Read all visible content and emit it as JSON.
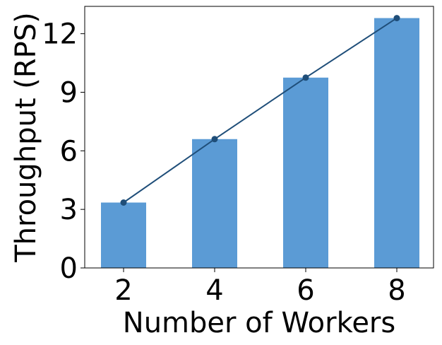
{
  "chart_data": {
    "type": "bar",
    "categories": [
      "2",
      "4",
      "6",
      "8"
    ],
    "values": [
      3.35,
      6.6,
      9.75,
      12.8
    ],
    "line": {
      "values": [
        3.35,
        6.6,
        9.75,
        12.8
      ],
      "color": "#1f4e79",
      "marker": "circle"
    },
    "bar_color": "#5b9bd5",
    "title": "",
    "xlabel": "Number of Workers",
    "ylabel": "Throughput (RPS)",
    "ylim": [
      0,
      13.4
    ],
    "yticks": [
      0,
      3,
      6,
      9,
      12
    ],
    "grid": false,
    "legend": "none"
  }
}
